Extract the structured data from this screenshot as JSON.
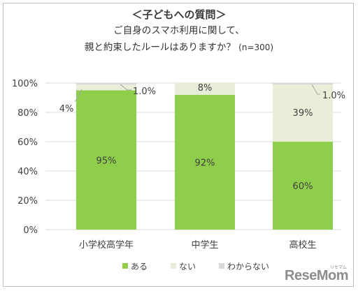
{
  "header": {
    "title": "＜子どもへの質問＞",
    "question_line1": "ご自身のスマホ利用に関して、",
    "question_line2": "親と約束したルールはありますか？",
    "sample_note": "(n=300)"
  },
  "watermark": {
    "text": "ReseMom",
    "kana": "リセマム"
  },
  "colors": {
    "aru": "#8fce4a",
    "nai": "#e8eed8",
    "wakaranai": "#d9d9d9",
    "grid": "#d9d9d9"
  },
  "chart_data": {
    "type": "bar",
    "stacked": true,
    "categories": [
      "小学校高学年",
      "中学生",
      "高校生"
    ],
    "series": [
      {
        "name": "ある",
        "values": [
          95,
          92,
          60
        ],
        "color": "#8fce4a"
      },
      {
        "name": "ない",
        "values": [
          4,
          8,
          39
        ],
        "color": "#e8eed8"
      },
      {
        "name": "わからない",
        "values": [
          1,
          0,
          1
        ],
        "color": "#d9d9d9"
      }
    ],
    "labels": [
      [
        "95%",
        "92%",
        "60%"
      ],
      [
        "4%",
        "8%",
        "39%"
      ],
      [
        "1.0%",
        "",
        "1.0%"
      ]
    ],
    "ylim": [
      0,
      100
    ],
    "yticks": [
      "0%",
      "20%",
      "40%",
      "60%",
      "80%",
      "100%"
    ],
    "grid": true,
    "legend_position": "bottom"
  }
}
